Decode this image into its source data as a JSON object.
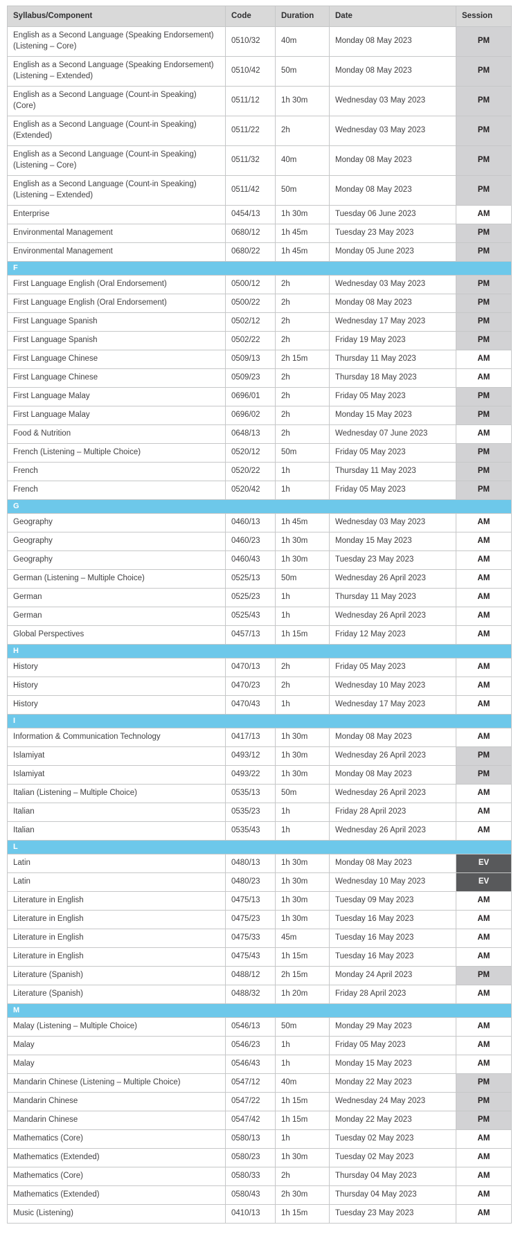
{
  "table": {
    "columns": [
      "Syllabus/Component",
      "Code",
      "Duration",
      "Date",
      "Session"
    ],
    "session_colors": {
      "pm_bg": "#d2d2d4",
      "am_bg": "#ffffff",
      "ev_bg": "#58595b",
      "section_bg": "#6dc8ea",
      "header_bg": "#d9d9d9"
    },
    "rows": [
      {
        "syllabus": "English as a Second Language (Speaking Endorsement) (Listening – Core)",
        "code": "0510/32",
        "duration": "40m",
        "date": "Monday 08 May 2023",
        "session": "PM",
        "wrap": true
      },
      {
        "syllabus": "English as a Second Language (Speaking Endorsement) (Listening – Extended)",
        "code": "0510/42",
        "duration": "50m",
        "date": "Monday 08 May 2023",
        "session": "PM",
        "wrap": true
      },
      {
        "syllabus": "English as a Second Language (Count-in Speaking) (Core)",
        "code": "0511/12",
        "duration": "1h 30m",
        "date": "Wednesday 03 May 2023",
        "session": "PM",
        "wrap": true
      },
      {
        "syllabus": "English as a Second Language (Count-in Speaking) (Extended)",
        "code": "0511/22",
        "duration": "2h",
        "date": "Wednesday 03 May 2023",
        "session": "PM",
        "wrap": true
      },
      {
        "syllabus": "English as a Second Language (Count-in Speaking) (Listening – Core)",
        "code": "0511/32",
        "duration": "40m",
        "date": "Monday 08 May 2023",
        "session": "PM",
        "wrap": true
      },
      {
        "syllabus": "English as a Second Language (Count-in Speaking) (Listening – Extended)",
        "code": "0511/42",
        "duration": "50m",
        "date": "Monday 08 May 2023",
        "session": "PM",
        "wrap": true
      },
      {
        "syllabus": "Enterprise",
        "code": "0454/13",
        "duration": "1h 30m",
        "date": "Tuesday 06 June 2023",
        "session": "AM"
      },
      {
        "syllabus": "Environmental Management",
        "code": "0680/12",
        "duration": "1h 45m",
        "date": "Tuesday 23 May 2023",
        "session": "PM"
      },
      {
        "syllabus": "Environmental Management",
        "code": "0680/22",
        "duration": "1h 45m",
        "date": "Monday 05 June 2023",
        "session": "PM"
      },
      {
        "section": "F"
      },
      {
        "syllabus": "First Language English (Oral Endorsement)",
        "code": "0500/12",
        "duration": "2h",
        "date": "Wednesday 03 May 2023",
        "session": "PM"
      },
      {
        "syllabus": "First Language English (Oral Endorsement)",
        "code": "0500/22",
        "duration": "2h",
        "date": "Monday 08 May 2023",
        "session": "PM"
      },
      {
        "syllabus": "First Language Spanish",
        "code": "0502/12",
        "duration": "2h",
        "date": "Wednesday 17 May 2023",
        "session": "PM"
      },
      {
        "syllabus": "First Language Spanish",
        "code": "0502/22",
        "duration": "2h",
        "date": "Friday 19 May 2023",
        "session": "PM"
      },
      {
        "syllabus": "First Language Chinese",
        "code": "0509/13",
        "duration": "2h 15m",
        "date": "Thursday 11 May 2023",
        "session": "AM"
      },
      {
        "syllabus": "First Language Chinese",
        "code": "0509/23",
        "duration": "2h",
        "date": "Thursday 18 May 2023",
        "session": "AM"
      },
      {
        "syllabus": "First Language Malay",
        "code": "0696/01",
        "duration": "2h",
        "date": "Friday 05 May 2023",
        "session": "PM"
      },
      {
        "syllabus": "First Language Malay",
        "code": "0696/02",
        "duration": "2h",
        "date": "Monday 15 May 2023",
        "session": "PM"
      },
      {
        "syllabus": "Food & Nutrition",
        "code": "0648/13",
        "duration": "2h",
        "date": "Wednesday 07 June 2023",
        "session": "AM"
      },
      {
        "syllabus": "French (Listening – Multiple Choice)",
        "code": "0520/12",
        "duration": "50m",
        "date": "Friday 05 May 2023",
        "session": "PM"
      },
      {
        "syllabus": "French",
        "code": "0520/22",
        "duration": "1h",
        "date": "Thursday 11 May 2023",
        "session": "PM"
      },
      {
        "syllabus": "French",
        "code": "0520/42",
        "duration": "1h",
        "date": "Friday 05 May 2023",
        "session": "PM"
      },
      {
        "section": "G"
      },
      {
        "syllabus": "Geography",
        "code": "0460/13",
        "duration": "1h 45m",
        "date": "Wednesday 03 May 2023",
        "session": "AM"
      },
      {
        "syllabus": "Geography",
        "code": "0460/23",
        "duration": "1h 30m",
        "date": "Monday 15 May 2023",
        "session": "AM"
      },
      {
        "syllabus": "Geography",
        "code": "0460/43",
        "duration": "1h 30m",
        "date": "Tuesday 23 May 2023",
        "session": "AM"
      },
      {
        "syllabus": "German (Listening – Multiple Choice)",
        "code": "0525/13",
        "duration": "50m",
        "date": "Wednesday 26 April 2023",
        "session": "AM"
      },
      {
        "syllabus": "German",
        "code": "0525/23",
        "duration": "1h",
        "date": "Thursday 11 May 2023",
        "session": "AM"
      },
      {
        "syllabus": "German",
        "code": "0525/43",
        "duration": "1h",
        "date": "Wednesday 26 April 2023",
        "session": "AM"
      },
      {
        "syllabus": "Global Perspectives",
        "code": "0457/13",
        "duration": "1h 15m",
        "date": "Friday 12 May 2023",
        "session": "AM"
      },
      {
        "section": "H"
      },
      {
        "syllabus": "History",
        "code": "0470/13",
        "duration": "2h",
        "date": "Friday 05 May 2023",
        "session": "AM"
      },
      {
        "syllabus": "History",
        "code": "0470/23",
        "duration": "2h",
        "date": "Wednesday 10 May 2023",
        "session": "AM"
      },
      {
        "syllabus": "History",
        "code": "0470/43",
        "duration": "1h",
        "date": "Wednesday 17 May 2023",
        "session": "AM"
      },
      {
        "section": "I"
      },
      {
        "syllabus": "Information & Communication Technology",
        "code": "0417/13",
        "duration": "1h 30m",
        "date": "Monday 08 May 2023",
        "session": "AM"
      },
      {
        "syllabus": "Islamiyat",
        "code": "0493/12",
        "duration": "1h 30m",
        "date": "Wednesday 26 April 2023",
        "session": "PM"
      },
      {
        "syllabus": "Islamiyat",
        "code": "0493/22",
        "duration": "1h 30m",
        "date": "Monday 08 May 2023",
        "session": "PM"
      },
      {
        "syllabus": "Italian (Listening – Multiple Choice)",
        "code": "0535/13",
        "duration": "50m",
        "date": "Wednesday 26 April 2023",
        "session": "AM"
      },
      {
        "syllabus": "Italian",
        "code": "0535/23",
        "duration": "1h",
        "date": "Friday 28 April 2023",
        "session": "AM"
      },
      {
        "syllabus": "Italian",
        "code": "0535/43",
        "duration": "1h",
        "date": "Wednesday 26 April 2023",
        "session": "AM"
      },
      {
        "section": "L"
      },
      {
        "syllabus": "Latin",
        "code": "0480/13",
        "duration": "1h 30m",
        "date": "Monday 08 May 2023",
        "session": "EV"
      },
      {
        "syllabus": "Latin",
        "code": "0480/23",
        "duration": "1h 30m",
        "date": "Wednesday 10 May 2023",
        "session": "EV"
      },
      {
        "syllabus": "Literature in English",
        "code": "0475/13",
        "duration": "1h 30m",
        "date": "Tuesday 09 May 2023",
        "session": "AM"
      },
      {
        "syllabus": "Literature in English",
        "code": "0475/23",
        "duration": "1h 30m",
        "date": "Tuesday 16 May 2023",
        "session": "AM"
      },
      {
        "syllabus": "Literature in English",
        "code": "0475/33",
        "duration": "45m",
        "date": "Tuesday 16 May 2023",
        "session": "AM"
      },
      {
        "syllabus": "Literature in English",
        "code": "0475/43",
        "duration": "1h 15m",
        "date": "Tuesday 16 May 2023",
        "session": "AM"
      },
      {
        "syllabus": "Literature (Spanish)",
        "code": "0488/12",
        "duration": "2h 15m",
        "date": "Monday 24 April 2023",
        "session": "PM"
      },
      {
        "syllabus": "Literature (Spanish)",
        "code": "0488/32",
        "duration": "1h 20m",
        "date": "Friday 28 April 2023",
        "session": "AM"
      },
      {
        "section": "M"
      },
      {
        "syllabus": "Malay (Listening – Multiple Choice)",
        "code": "0546/13",
        "duration": "50m",
        "date": "Monday 29 May 2023",
        "session": "AM"
      },
      {
        "syllabus": "Malay",
        "code": "0546/23",
        "duration": "1h",
        "date": "Friday 05 May 2023",
        "session": "AM"
      },
      {
        "syllabus": "Malay",
        "code": "0546/43",
        "duration": "1h",
        "date": "Monday 15 May 2023",
        "session": "AM"
      },
      {
        "syllabus": "Mandarin Chinese (Listening – Multiple Choice)",
        "code": "0547/12",
        "duration": "40m",
        "date": "Monday 22 May 2023",
        "session": "PM"
      },
      {
        "syllabus": "Mandarin Chinese",
        "code": "0547/22",
        "duration": "1h 15m",
        "date": "Wednesday 24 May 2023",
        "session": "PM"
      },
      {
        "syllabus": "Mandarin Chinese",
        "code": "0547/42",
        "duration": "1h 15m",
        "date": "Monday 22 May 2023",
        "session": "PM"
      },
      {
        "syllabus": "Mathematics (Core)",
        "code": "0580/13",
        "duration": "1h",
        "date": "Tuesday 02 May 2023",
        "session": "AM"
      },
      {
        "syllabus": "Mathematics (Extended)",
        "code": "0580/23",
        "duration": "1h 30m",
        "date": "Tuesday 02 May 2023",
        "session": "AM"
      },
      {
        "syllabus": "Mathematics (Core)",
        "code": "0580/33",
        "duration": "2h",
        "date": "Thursday 04 May 2023",
        "session": "AM"
      },
      {
        "syllabus": "Mathematics (Extended)",
        "code": "0580/43",
        "duration": "2h 30m",
        "date": "Thursday 04 May 2023",
        "session": "AM"
      },
      {
        "syllabus": "Music (Listening)",
        "code": "0410/13",
        "duration": "1h 15m",
        "date": "Tuesday 23 May 2023",
        "session": "AM"
      }
    ]
  }
}
